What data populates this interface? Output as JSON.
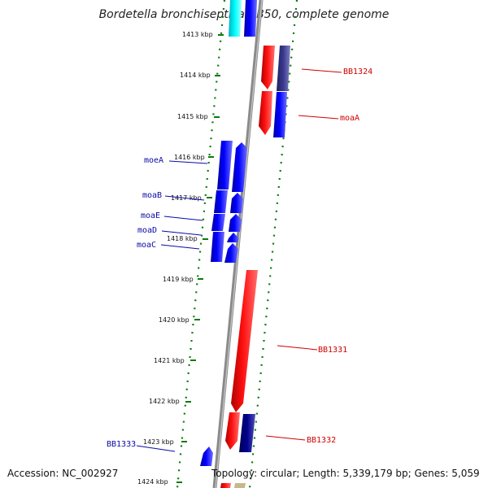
{
  "title": "Bordetella bronchiseptica RB50, complete genome",
  "footer": {
    "accession": "Accession: NC_002927",
    "summary": "Topology: circular; Length: 5,339,179 bp; Genes: 5,059"
  },
  "ticks": [
    {
      "label": "1413 kbp"
    },
    {
      "label": "1414 kbp"
    },
    {
      "label": "1415 kbp"
    },
    {
      "label": "1416 kbp"
    },
    {
      "label": "1417 kbp"
    },
    {
      "label": "1418 kbp"
    },
    {
      "label": "1419 kbp"
    },
    {
      "label": "1420 kbp"
    },
    {
      "label": "1421 kbp"
    },
    {
      "label": "1422 kbp"
    },
    {
      "label": "1423 kbp"
    },
    {
      "label": "1424 kbp"
    }
  ],
  "gene_labels": [
    {
      "name": "BB1324",
      "color": "#d00000"
    },
    {
      "name": "moaA",
      "color": "#d00000"
    },
    {
      "name": "moeA",
      "color": "#0a0aa8"
    },
    {
      "name": "moaB",
      "color": "#0a0aa8"
    },
    {
      "name": "moaE",
      "color": "#0a0aa8"
    },
    {
      "name": "moaD",
      "color": "#0a0aa8"
    },
    {
      "name": "moaC",
      "color": "#0a0aa8"
    },
    {
      "name": "BB1331",
      "color": "#d00000"
    },
    {
      "name": "BB1332",
      "color": "#d00000"
    },
    {
      "name": "BB1333",
      "color": "#0a0aa8"
    }
  ],
  "colors": {
    "forward_strand": "#ff0000",
    "reverse_strand": "#0000ee",
    "dark_blue": "#000080",
    "slate": "#3a3a8a",
    "cyan": "#00e5ee",
    "backbone": "#888888",
    "tick_mark": "#0a7a0a"
  }
}
